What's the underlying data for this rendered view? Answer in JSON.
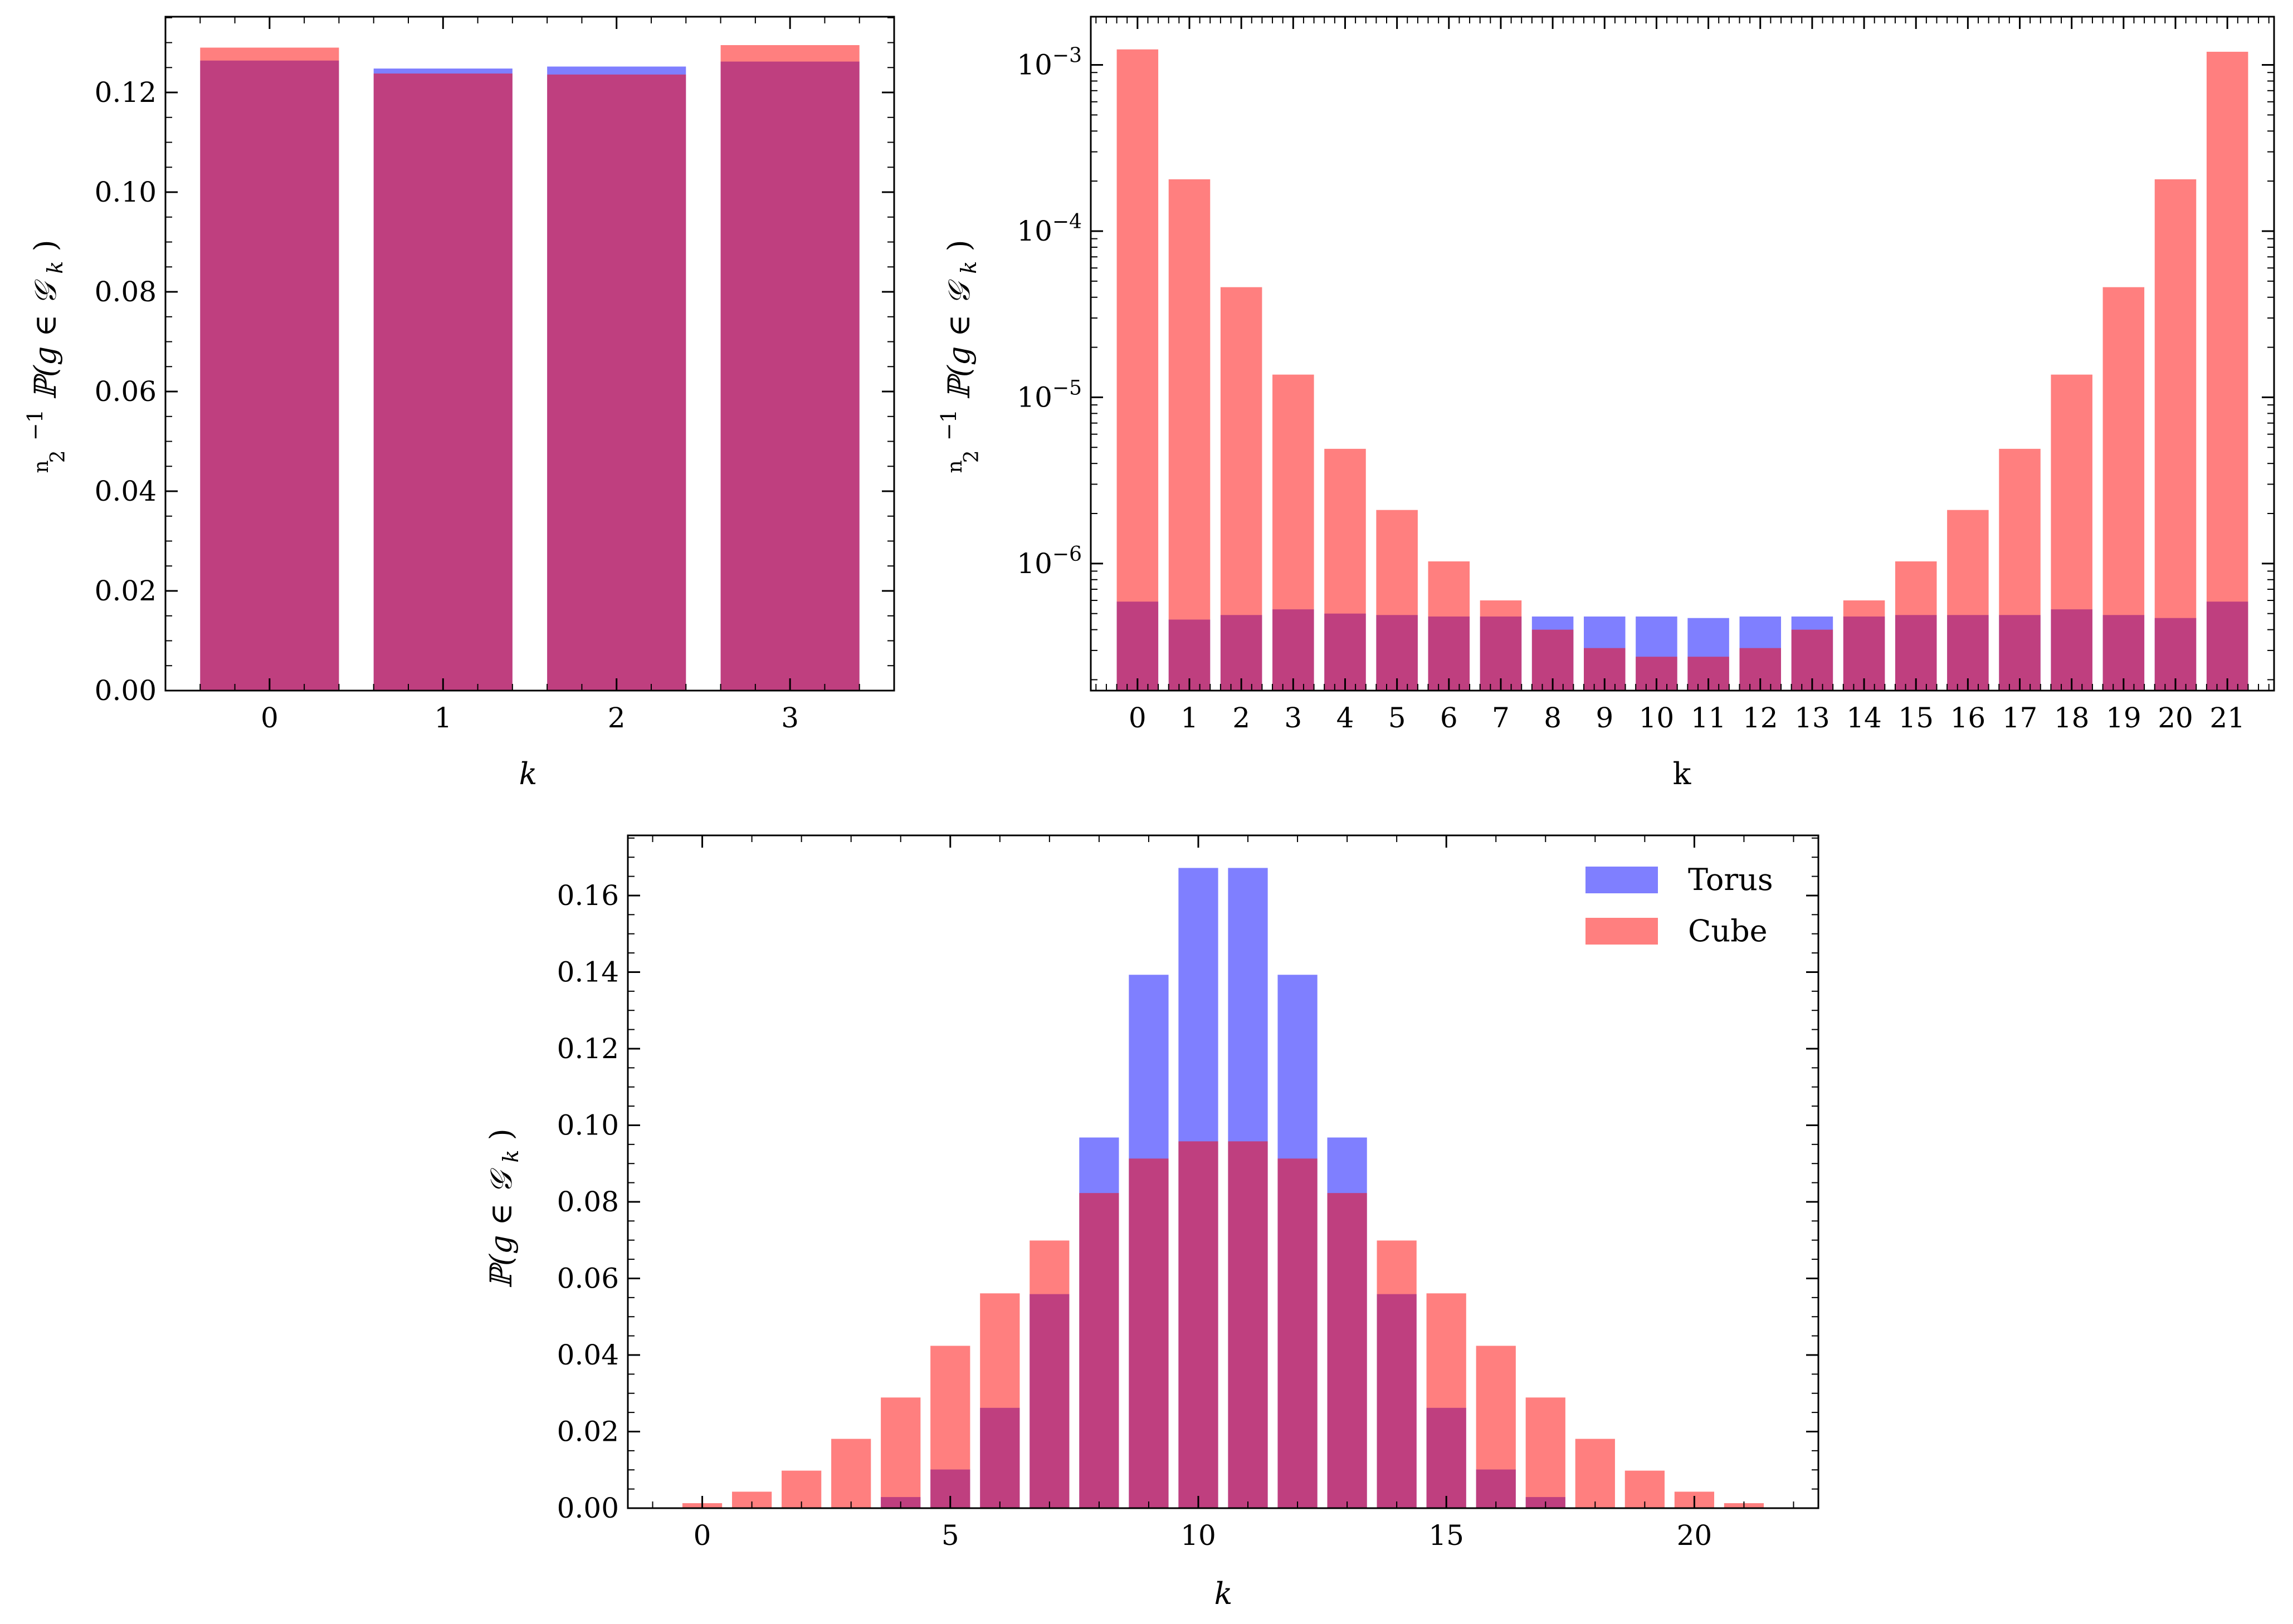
{
  "colors": {
    "torus": "#0000ff",
    "cube": "#ff0000",
    "bar_alpha": 0.5,
    "axis": "#000000"
  },
  "chart_data": [
    {
      "id": "p1",
      "type": "bar",
      "scale": "linear",
      "title": "",
      "xlabel": "k",
      "ylabel": "(n 2)⁻¹ ℙ(g ∈ 𝒢ₖ)",
      "ylabel_parts": {
        "binom_top": "n",
        "binom_bottom": "2",
        "exp": "−1",
        "main": "ℙ(g ∈ 𝒢",
        "sub": "k",
        "close": ")"
      },
      "categories": [
        0,
        1,
        2,
        3
      ],
      "xtick_labels": [
        "0",
        "1",
        "2",
        "3"
      ],
      "xlim": [
        -0.6,
        3.6
      ],
      "ylim": [
        0,
        0.1352
      ],
      "yticks": [
        0,
        0.02,
        0.04,
        0.06,
        0.08,
        0.1,
        0.12
      ],
      "ytick_labels": [
        "0.00",
        "0.02",
        "0.04",
        "0.06",
        "0.08",
        "0.10",
        "0.12"
      ],
      "series": [
        {
          "name": "Torus",
          "values": [
            0.1264,
            0.1248,
            0.1252,
            0.1262
          ]
        },
        {
          "name": "Cube",
          "values": [
            0.129,
            0.1238,
            0.1236,
            0.1295
          ]
        }
      ]
    },
    {
      "id": "p2",
      "type": "bar",
      "scale": "log",
      "title": "",
      "xlabel": "k",
      "ylabel": "(n 2)⁻¹ ℙ(g ∈ 𝒢ₖ)",
      "ylabel_parts": {
        "binom_top": "n",
        "binom_bottom": "2",
        "exp": "−1",
        "main": "ℙ(g ∈ 𝒢",
        "sub": "k",
        "close": ")"
      },
      "categories": [
        0,
        1,
        2,
        3,
        4,
        5,
        6,
        7,
        8,
        9,
        10,
        11,
        12,
        13,
        14,
        15,
        16,
        17,
        18,
        19,
        20,
        21
      ],
      "xtick_labels": [
        "0",
        "1",
        "2",
        "3",
        "4",
        "5",
        "6",
        "7",
        "8",
        "9",
        "10",
        "11",
        "12",
        "13",
        "14",
        "15",
        "16",
        "17",
        "18",
        "19",
        "20",
        "21"
      ],
      "xlim": [
        -0.9,
        21.9
      ],
      "ylim": [
        1.72e-07,
        0.00195
      ],
      "yticks": [
        1e-06,
        1e-05,
        0.0001,
        0.001
      ],
      "ytick_labels": [
        {
          "base": "10",
          "exp": "−6"
        },
        {
          "base": "10",
          "exp": "−5"
        },
        {
          "base": "10",
          "exp": "−4"
        },
        {
          "base": "10",
          "exp": "−3"
        }
      ],
      "series": [
        {
          "name": "Torus",
          "values": [
            5.9e-07,
            4.6e-07,
            4.9e-07,
            5.3e-07,
            5e-07,
            4.9e-07,
            4.8e-07,
            4.8e-07,
            4.8e-07,
            4.8e-07,
            4.8e-07,
            4.7e-07,
            4.8e-07,
            4.8e-07,
            4.8e-07,
            4.9e-07,
            4.9e-07,
            4.9e-07,
            5.3e-07,
            4.9e-07,
            4.7e-07,
            5.9e-07
          ]
        },
        {
          "name": "Cube",
          "values": [
            0.00124,
            0.000205,
            4.6e-05,
            1.37e-05,
            4.9e-06,
            2.1e-06,
            1.03e-06,
            6e-07,
            4e-07,
            3.1e-07,
            2.75e-07,
            2.75e-07,
            3.1e-07,
            4e-07,
            6e-07,
            1.03e-06,
            2.1e-06,
            4.9e-06,
            1.37e-05,
            4.6e-05,
            0.000205,
            0.0012
          ]
        }
      ]
    },
    {
      "id": "p3",
      "type": "bar",
      "scale": "linear",
      "title": "",
      "xlabel": "k",
      "ylabel": "ℙ(g ∈ 𝒢ₖ)",
      "ylabel_parts": {
        "main": "ℙ(g ∈ 𝒢",
        "sub": "k",
        "close": ")"
      },
      "categories": [
        0,
        1,
        2,
        3,
        4,
        5,
        6,
        7,
        8,
        9,
        10,
        11,
        12,
        13,
        14,
        15,
        16,
        17,
        18,
        19,
        20,
        21
      ],
      "xticks": [
        0,
        5,
        10,
        15,
        20
      ],
      "xtick_labels": [
        "0",
        "5",
        "10",
        "15",
        "20"
      ],
      "xlim": [
        -1.5,
        22.5
      ],
      "ylim": [
        0,
        0.1757
      ],
      "yticks": [
        0,
        0.02,
        0.04,
        0.06,
        0.08,
        0.1,
        0.12,
        0.14,
        0.16
      ],
      "ytick_labels": [
        "0.00",
        "0.02",
        "0.04",
        "0.06",
        "0.08",
        "0.10",
        "0.12",
        "0.14",
        "0.16"
      ],
      "legend": {
        "position": "top-right",
        "entries": [
          "Torus",
          "Cube"
        ]
      },
      "series": [
        {
          "name": "Torus",
          "values": [
            0,
            0,
            0,
            0,
            0.0029,
            0.0101,
            0.0262,
            0.0559,
            0.0968,
            0.1393,
            0.1672,
            0.1672,
            0.1393,
            0.0968,
            0.0559,
            0.0262,
            0.0101,
            0.0029,
            0,
            0,
            0,
            0
          ]
        },
        {
          "name": "Cube",
          "values": [
            0.0013,
            0.0043,
            0.0098,
            0.0181,
            0.0289,
            0.0424,
            0.0561,
            0.0699,
            0.0823,
            0.0913,
            0.0958,
            0.0958,
            0.0913,
            0.0823,
            0.0699,
            0.0561,
            0.0424,
            0.0289,
            0.0181,
            0.0098,
            0.0043,
            0.0013
          ]
        }
      ]
    }
  ]
}
